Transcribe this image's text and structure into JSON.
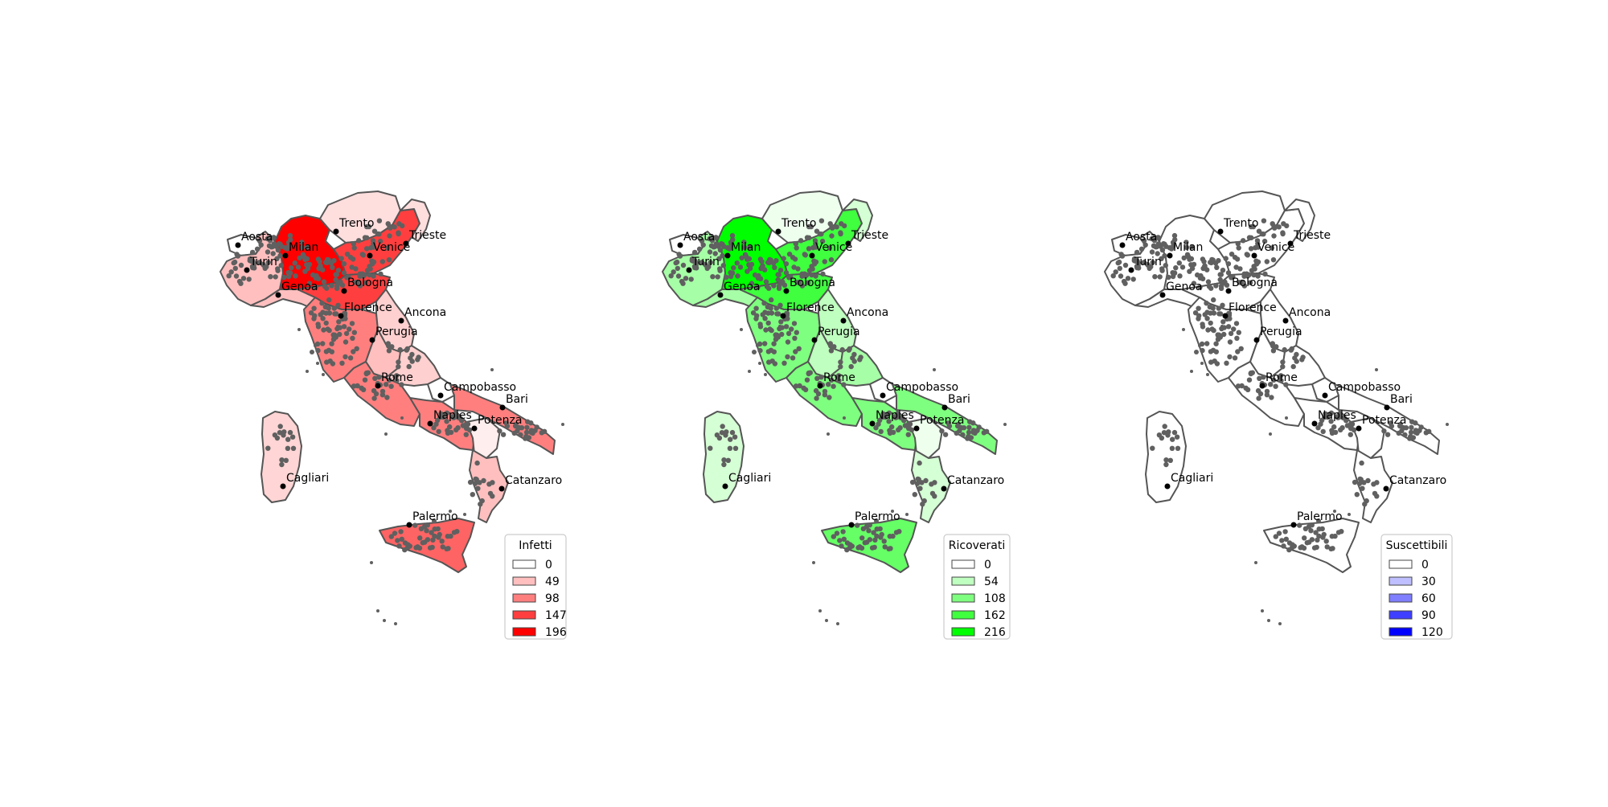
{
  "maps": [
    {
      "id": "infetti",
      "legend_title": "Infetti",
      "legend_entries": [
        {
          "label": "0",
          "color": "#ffffff"
        },
        {
          "label": "49",
          "color": "#ffbfbf"
        },
        {
          "label": "98",
          "color": "#ff7f7f"
        },
        {
          "label": "147",
          "color": "#ff3f3f"
        },
        {
          "label": "196",
          "color": "#ff0000"
        }
      ],
      "region_colors": {
        "valle_aosta": "#ffffff",
        "piemonte": "#ffbfbf",
        "liguria": "#ffbfbf",
        "lombardia": "#ff0000",
        "trentino": "#ffdede",
        "veneto": "#ff3f3f",
        "friuli": "#ffdede",
        "emilia": "#ff3f3f",
        "toscana": "#ff7f7f",
        "marche": "#ffd0d0",
        "umbria": "#ffbfbf",
        "lazio": "#ff7f7f",
        "abruzzo": "#ffd0d0",
        "molise": "#ffffff",
        "campania": "#ff7f7f",
        "puglia": "#ff7f7f",
        "basilicata": "#ffeeee",
        "calabria": "#ffbfbf",
        "sicilia": "#ff6464",
        "sardegna": "#ffd5d5"
      }
    },
    {
      "id": "ricoverati",
      "legend_title": "Ricoverati",
      "legend_entries": [
        {
          "label": "0",
          "color": "#ffffff"
        },
        {
          "label": "54",
          "color": "#bfffbf"
        },
        {
          "label": "108",
          "color": "#7fff7f"
        },
        {
          "label": "162",
          "color": "#3fff3f"
        },
        {
          "label": "216",
          "color": "#00ff00"
        }
      ],
      "region_colors": {
        "valle_aosta": "#ffffff",
        "piemonte": "#a6ffa6",
        "liguria": "#a6ffa6",
        "lombardia": "#00ff00",
        "trentino": "#eeffee",
        "veneto": "#3fff3f",
        "friuli": "#d5ffd5",
        "emilia": "#3fff3f",
        "toscana": "#7fff7f",
        "marche": "#bfffbf",
        "umbria": "#bfffbf",
        "lazio": "#7fff7f",
        "abruzzo": "#a6ffa6",
        "molise": "#ffffff",
        "campania": "#7fff7f",
        "puglia": "#7fff7f",
        "basilicata": "#eeffee",
        "calabria": "#d5ffd5",
        "sicilia": "#66ff66",
        "sardegna": "#d5ffd5"
      }
    },
    {
      "id": "suscettibili",
      "legend_title": "Suscettibili",
      "legend_entries": [
        {
          "label": "0",
          "color": "#ffffff"
        },
        {
          "label": "30",
          "color": "#bfbfff"
        },
        {
          "label": "60",
          "color": "#7f7fff"
        },
        {
          "label": "90",
          "color": "#3f3fff"
        },
        {
          "label": "120",
          "color": "#0000ff"
        }
      ],
      "region_colors": {
        "valle_aosta": "#ffffff",
        "piemonte": "#ffffff",
        "liguria": "#ffffff",
        "lombardia": "#ffffff",
        "trentino": "#ffffff",
        "veneto": "#ffffff",
        "friuli": "#ffffff",
        "emilia": "#ffffff",
        "toscana": "#ffffff",
        "marche": "#ffffff",
        "umbria": "#ffffff",
        "lazio": "#ffffff",
        "abruzzo": "#ffffff",
        "molise": "#ffffff",
        "campania": "#ffffff",
        "puglia": "#ffffff",
        "basilicata": "#ffffff",
        "calabria": "#ffffff",
        "sicilia": "#ffffff",
        "sardegna": "#ffffff"
      }
    }
  ],
  "cities": [
    "Aosta",
    "Turin",
    "Milan",
    "Trento",
    "Venice",
    "Trieste",
    "Genoa",
    "Bologna",
    "Florence",
    "Ancona",
    "Perugia",
    "Rome",
    "Campobasso",
    "Bari",
    "Naples",
    "Potenza",
    "Cagliari",
    "Catanzaro",
    "Palermo"
  ],
  "colors": {
    "outline": "#555555",
    "dots": "#606060",
    "city_marker": "#000000",
    "legend_border": "#cccccc"
  }
}
